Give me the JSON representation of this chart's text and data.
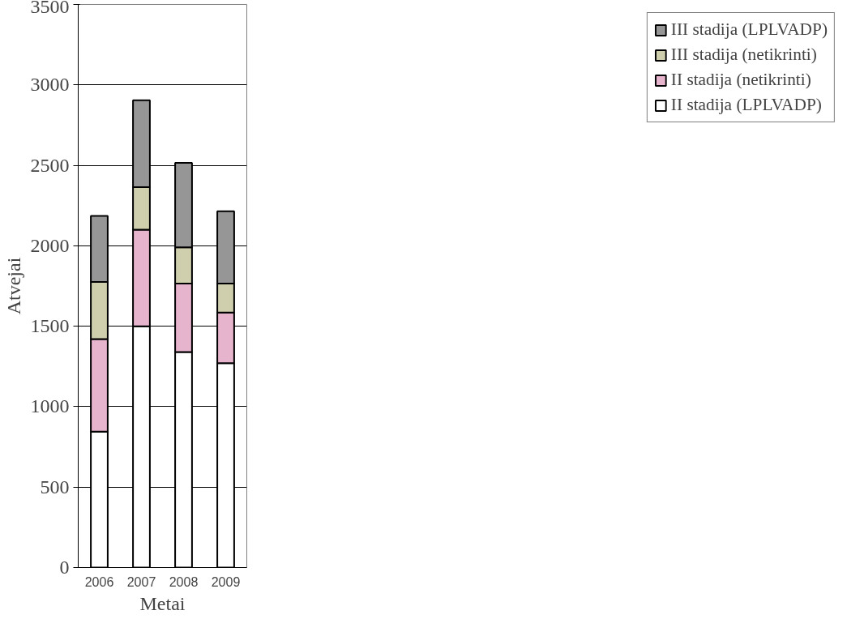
{
  "chart_data": {
    "type": "bar",
    "stacked": true,
    "xlabel": "Metai",
    "ylabel": "Atvejai",
    "categories": [
      "2006",
      "2007",
      "2008",
      "2009"
    ],
    "series": [
      {
        "name": "II stadija (LPLVADP)",
        "color": "#ffffff",
        "values": [
          845,
          1500,
          1340,
          1270
        ]
      },
      {
        "name": "II stadija (netikrinti)",
        "color": "#e6b4cc",
        "values": [
          575,
          600,
          425,
          315
        ]
      },
      {
        "name": "III stadija (netikrinti)",
        "color": "#cfcfae",
        "values": [
          355,
          265,
          225,
          180
        ]
      },
      {
        "name": "III stadija (LPLVADP)",
        "color": "#969696",
        "values": [
          410,
          540,
          525,
          450
        ]
      }
    ],
    "ylim": [
      0,
      3500
    ],
    "yticks": [
      0,
      500,
      1000,
      1500,
      2000,
      2500,
      3000,
      3500
    ],
    "grid": "y",
    "legend": "right"
  }
}
